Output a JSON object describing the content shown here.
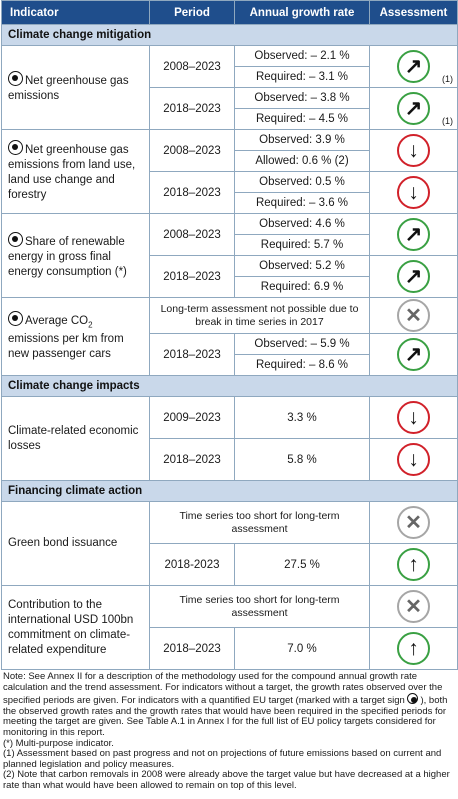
{
  "header": {
    "col_indicator": "Indicator",
    "col_period": "Period",
    "col_growth": "Annual growth rate",
    "col_assessment": "Assessment"
  },
  "sections": {
    "mitigation": "Climate change mitigation",
    "impacts": "Climate change impacts",
    "financing": "Financing climate action"
  },
  "rows": {
    "ghg": {
      "name": "Net greenhouse gas emissions",
      "p1": "2008–2023",
      "p1_obs": "Observed: – 2.1 %",
      "p1_req": "Required: – 3.1 %",
      "p1_icon": "arrow-up-right",
      "p1_note": "(1)",
      "p2": "2018–2023",
      "p2_obs": "Observed: – 3.8 %",
      "p2_req": "Required: – 4.5 %",
      "p2_icon": "arrow-up-right",
      "p2_note": "(1)"
    },
    "lulucf": {
      "name": "Net greenhouse gas emissions from land use, land use change and forestry",
      "p1": "2008–2023",
      "p1_obs": "Observed: 3.9 %",
      "p1_req": "Allowed: 0.6 % (2)",
      "p1_icon": "arrow-down",
      "p2": "2018–2023",
      "p2_obs": "Observed: 0.5 %",
      "p2_req": "Required: – 3.6 %",
      "p2_icon": "arrow-down"
    },
    "renewable": {
      "name": "Share of renewable energy in gross final energy consumption (*)",
      "p1": "2008–2023",
      "p1_obs": "Observed: 4.6 %",
      "p1_req": "Required: 5.7 %",
      "p1_icon": "arrow-up-right",
      "p2": "2018–2023",
      "p2_obs": "Observed: 5.2 %",
      "p2_req": "Required: 6.9 %",
      "p2_icon": "arrow-up-right"
    },
    "cars": {
      "name_pre": "Average CO",
      "name_sub": "2",
      "name_post": " emissions per km from new passenger cars",
      "longterm": "Long-term assessment not possible due to break in time series in 2017",
      "longterm_icon": "cross",
      "p2": "2018–2023",
      "p2_obs": "Observed: – 5.9 %",
      "p2_req": "Required: – 8.6 %",
      "p2_icon": "arrow-up-right"
    },
    "losses": {
      "name": "Climate-related economic losses",
      "p1": "2009–2023",
      "p1_val": "3.3 %",
      "p1_icon": "arrow-down",
      "p2": "2018–2023",
      "p2_val": "5.8 %",
      "p2_icon": "arrow-down"
    },
    "bonds": {
      "name": "Green bond issuance",
      "longterm": "Time series too short for long-term assessment",
      "longterm_icon": "cross",
      "p2": "2018-2023",
      "p2_val": "27.5 %",
      "p2_icon": "arrow-up"
    },
    "usd": {
      "name": "Contribution to the international USD 100bn commitment on climate-related expenditure",
      "longterm": "Time series too short for long-term assessment",
      "longterm_icon": "cross",
      "p2": "2018–2023",
      "p2_val": "7.0 %",
      "p2_icon": "arrow-up"
    }
  },
  "icons": {
    "arrow-up-right": "↗",
    "arrow-down": "↓",
    "arrow-up": "↑",
    "cross": "✕"
  },
  "colors": {
    "header_bg": "#1f4e8c",
    "section_bg": "#c9d8ea",
    "positive": "#3aa043",
    "negative": "#d1212a",
    "neutral": "#a6a6a6"
  },
  "notes": {
    "n1_a": "Note: See Annex II for a description of the methodology used for the compound annual growth rate calculation and the trend assessment. For indicators without a target, the growth rates observed over the specified periods are given. For indicators with a quantified EU target (marked with a target sign ",
    "n1_b": "), both the observed growth rates and the growth rates that would have been required in the specified periods for meeting the target are given. See Table A.1 in Annex I for the full list of EU policy targets considered for monitoring in this report.",
    "n2": "(*) Multi-purpose indicator.",
    "n3": "(1) Assessment based on past progress and not on projections of future emissions based on current and planned legislation and policy measures.",
    "n4": "(2) Note that carbon removals in 2008 were already above the target value but have decreased at a higher rate than what would have been allowed to remain on top of this level."
  }
}
